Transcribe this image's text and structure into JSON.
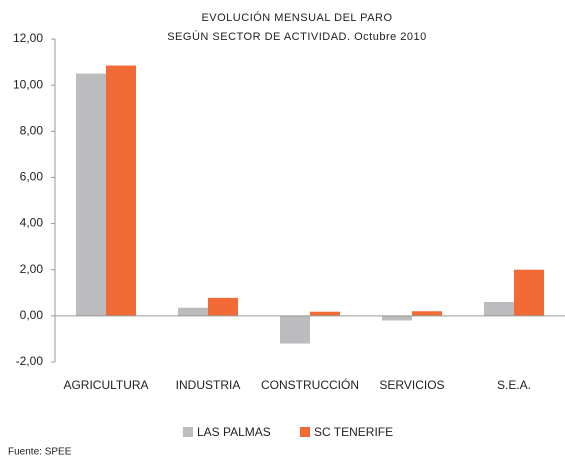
{
  "chart_data": {
    "type": "bar",
    "title": "EVOLUCIÓN MENSUAL DEL PARO",
    "subtitle": "SEGÚN SECTOR DE ACTIVIDAD. Octubre 2010",
    "categories": [
      "AGRICULTURA",
      "INDUSTRIA",
      "CONSTRUCCIÓN",
      "SERVICIOS",
      "S.E.A."
    ],
    "series": [
      {
        "name": "LAS PALMAS",
        "color": "#bcbcbe",
        "values": [
          10.5,
          0.35,
          -1.2,
          -0.2,
          0.6
        ]
      },
      {
        "name": "SC TENERIFE",
        "color": "#f26a36",
        "values": [
          10.85,
          0.78,
          0.18,
          0.2,
          2.0
        ]
      }
    ],
    "ylim": [
      -2,
      12
    ],
    "yticks": [
      {
        "value": -2,
        "label": "-2,00"
      },
      {
        "value": 0,
        "label": "0,00"
      },
      {
        "value": 2,
        "label": "2,00"
      },
      {
        "value": 4,
        "label": "4,00"
      },
      {
        "value": 6,
        "label": "6,00"
      },
      {
        "value": 8,
        "label": "8,00"
      },
      {
        "value": 10,
        "label": "10,00"
      },
      {
        "value": 12,
        "label": "12,00"
      }
    ],
    "grid": false,
    "legend": "bottom",
    "note": "Fuente: SPEE"
  }
}
